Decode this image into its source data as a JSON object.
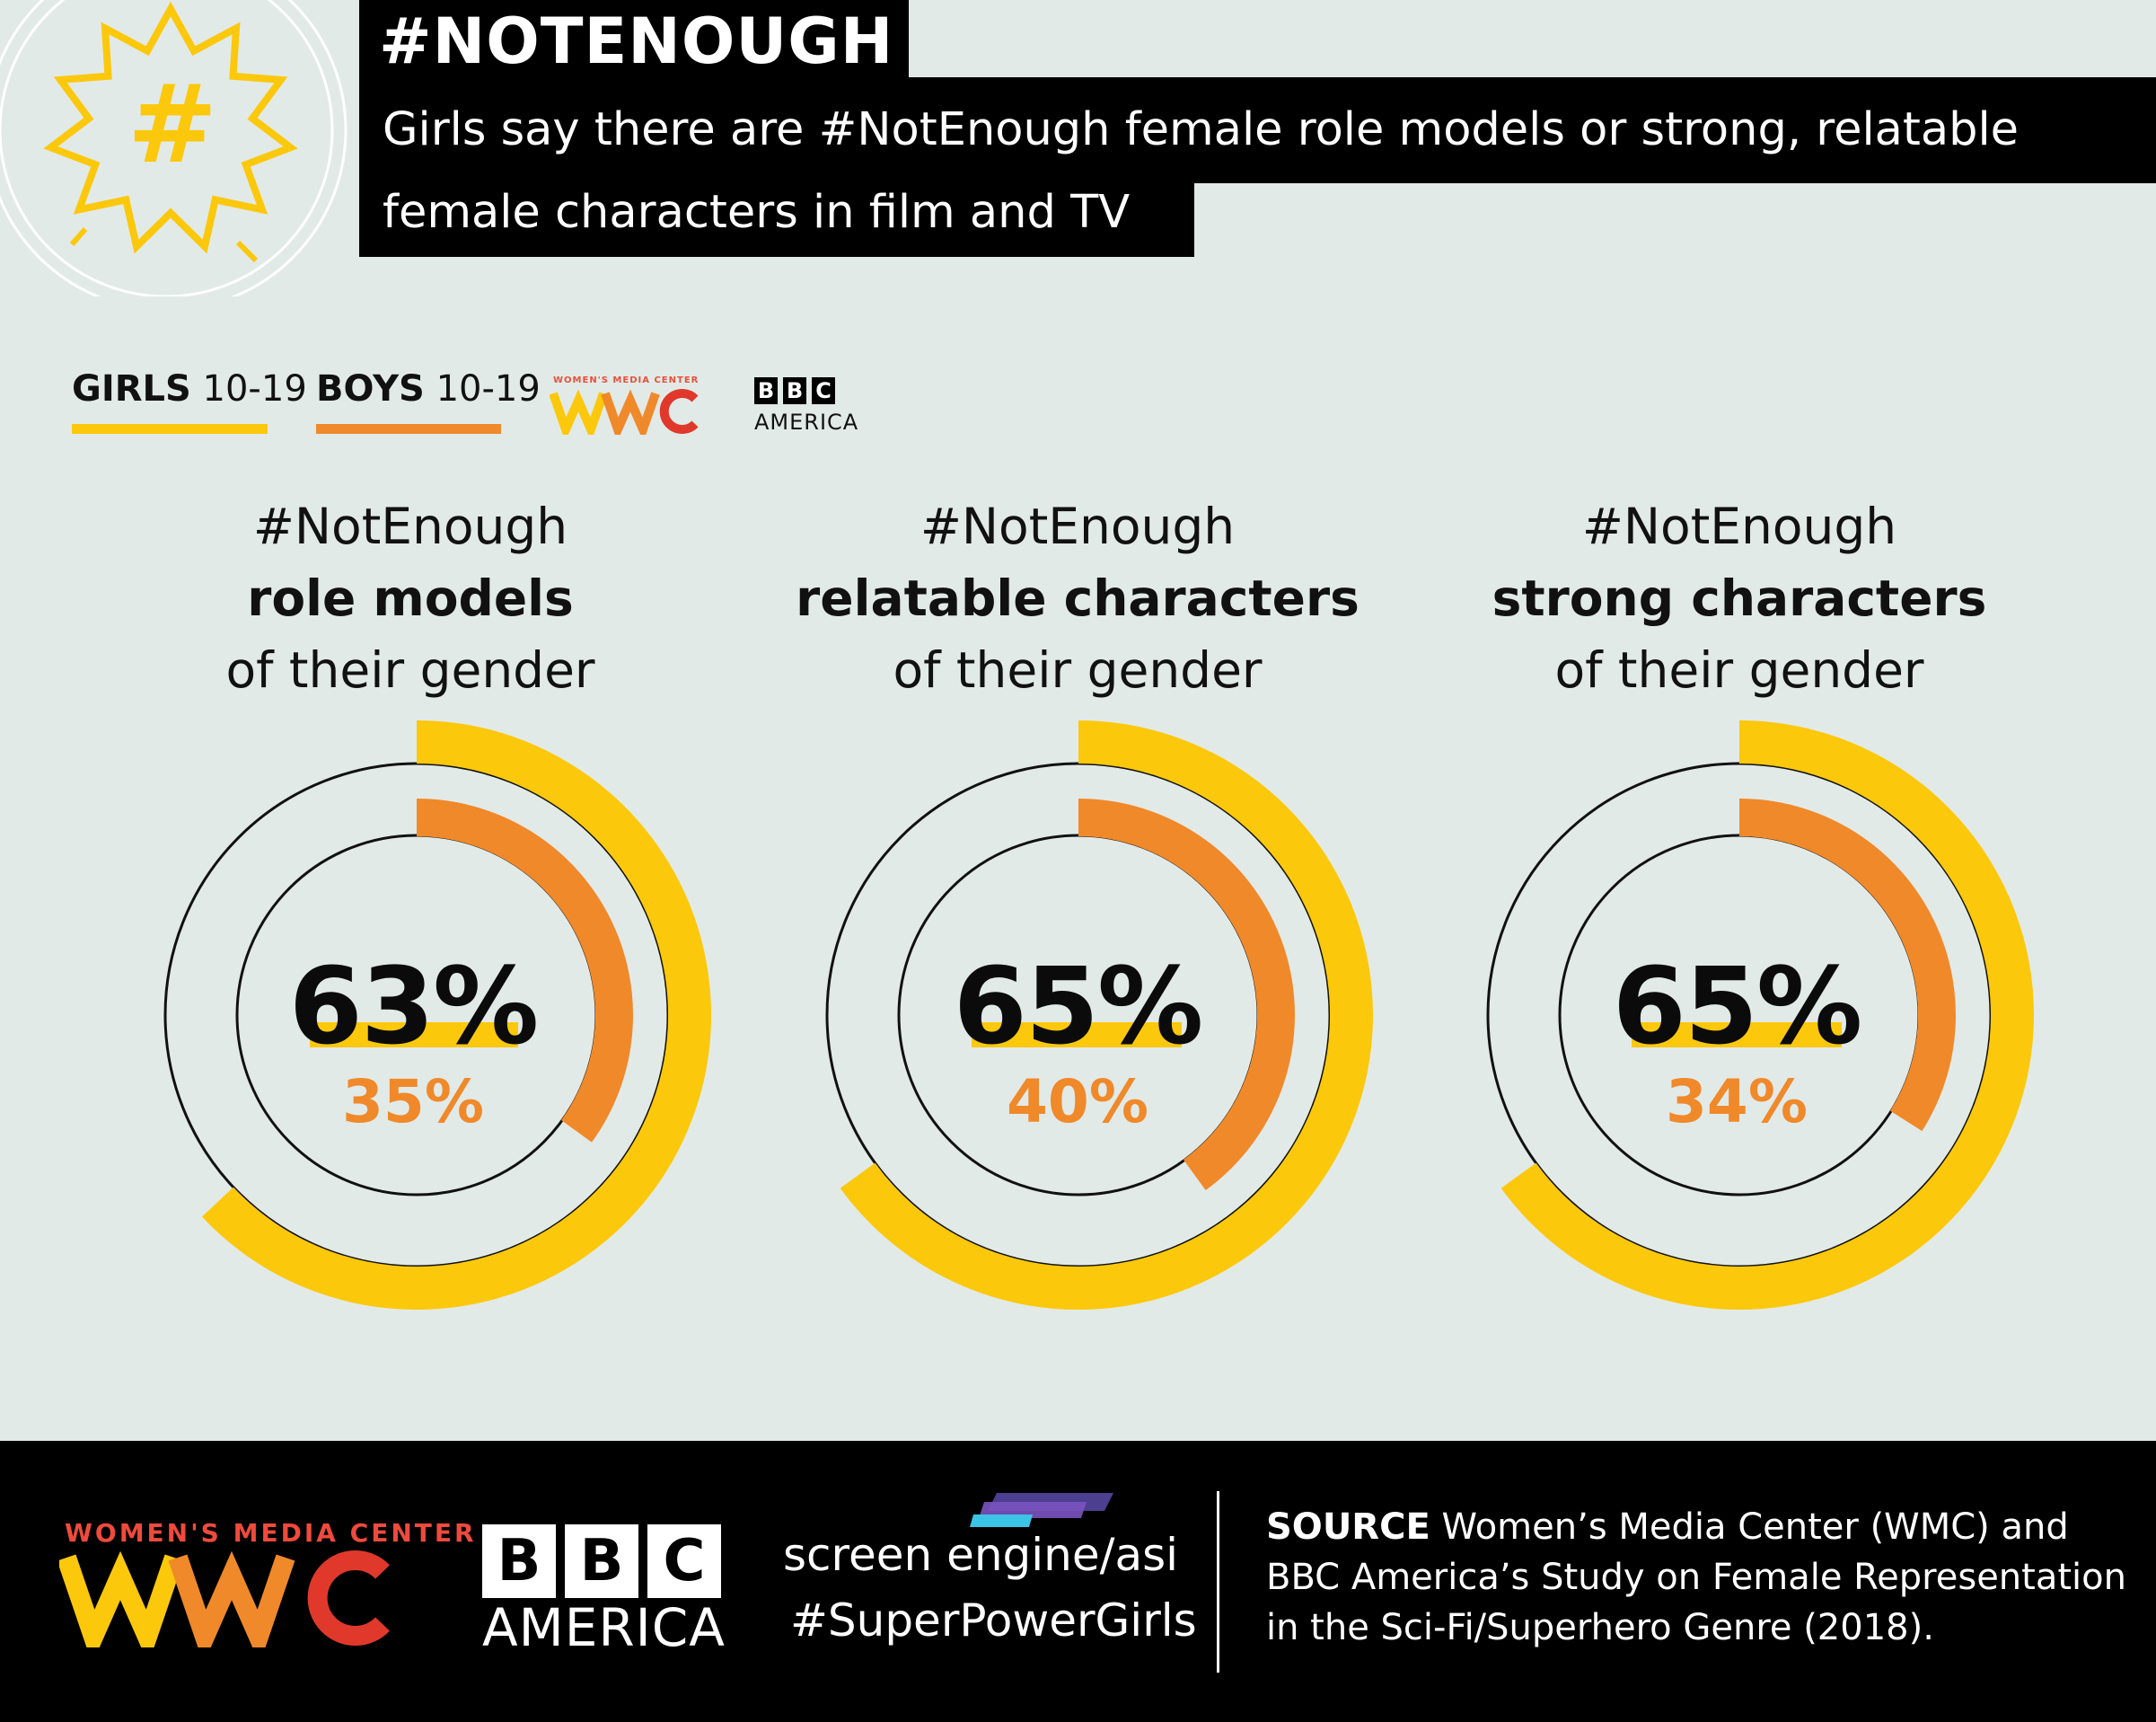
{
  "header": {
    "badge_symbol": "#",
    "title": "#NOTENOUGH",
    "subtitle_line1": "Girls say there are #NotEnough female role models or strong, relatable",
    "subtitle_line2": "female characters in film and TV"
  },
  "legend": {
    "girls_bold": "GIRLS",
    "girls_age": "10-19",
    "boys_bold": "BOYS",
    "boys_age": "10-19",
    "girls_color": "#fcc80c",
    "boys_color": "#f0892a"
  },
  "logos": {
    "wmc_name": "WOMEN'S MEDIA CENTER",
    "wmc_mark": "WMC",
    "bbc_letters": [
      "B",
      "B",
      "C"
    ],
    "bbc_sub": "AMERICA",
    "screen_engine": "screen engine/asi",
    "hashtag": "#SuperPowerGirls"
  },
  "chart_data": [
    {
      "type": "radial-bar",
      "heading_line1": "#NotEnough",
      "heading_line2": "role models",
      "heading_line3": "of their gender",
      "series": [
        {
          "name": "GIRLS 10-19",
          "value": 63,
          "label": "63%"
        },
        {
          "name": "BOYS 10-19",
          "value": 35,
          "label": "35%"
        }
      ]
    },
    {
      "type": "radial-bar",
      "heading_line1": "#NotEnough",
      "heading_line2": "relatable characters",
      "heading_line3": "of their gender",
      "series": [
        {
          "name": "GIRLS 10-19",
          "value": 65,
          "label": "65%"
        },
        {
          "name": "BOYS 10-19",
          "value": 40,
          "label": "40%"
        }
      ]
    },
    {
      "type": "radial-bar",
      "heading_line1": "#NotEnough",
      "heading_line2": "strong characters",
      "heading_line3": "of their gender",
      "series": [
        {
          "name": "GIRLS 10-19",
          "value": 65,
          "label": "65%"
        },
        {
          "name": "BOYS 10-19",
          "value": 34,
          "label": "34%"
        }
      ]
    }
  ],
  "footer": {
    "source_bold": "SOURCE",
    "source_text": "Women’s Media Center (WMC) and BBC America’s Study on Female Representation in the Sci-Fi/Superhero Genre (2018)."
  }
}
